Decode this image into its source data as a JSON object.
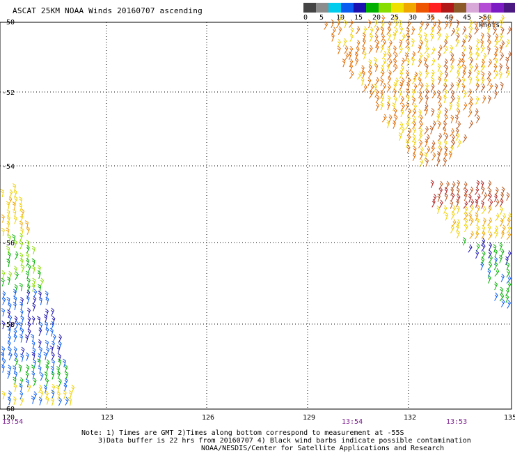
{
  "title": "ASCAT 25KM NOAA Winds 20160707 ascending",
  "colorbar": {
    "colors": [
      "#444444",
      "#8c8c8c",
      "#00ccee",
      "#0a5cf0",
      "#1b11b0",
      "#00b000",
      "#88dd00",
      "#f0e000",
      "#f0a800",
      "#ee5500",
      "#ff2020",
      "#b01818",
      "#8b5a28",
      "#d7a8d8",
      "#b44cd6",
      "#7c1ac4",
      "#4a1880"
    ],
    "labels": [
      "0",
      "5",
      "10",
      "15",
      "20",
      "25",
      "30",
      "35",
      "40",
      "45",
      ">50 knots"
    ]
  },
  "map": {
    "lat_labels": [
      "-50",
      "-52",
      "-54",
      "-56",
      "-58",
      "-60"
    ],
    "lon_labels": [
      "120",
      "123",
      "126",
      "129",
      "132",
      "135"
    ],
    "time_labels": [
      "13:54",
      "13:54",
      "13:53"
    ],
    "grid": "dotted"
  },
  "notes": {
    "line1": "Note: 1) Times are GMT 2)Times along bottom correspond to measurement at -55S",
    "line2": "3)Data buffer is 22 hrs from 20160707 4) Black wind barbs indicate possible contamination",
    "line3": "NOAA/NESDIS/Center for Satellite Applications and Research"
  },
  "swaths": [
    {
      "name": "northeast-swath-yellow",
      "color": "#f0d000"
    },
    {
      "name": "northeast-swath-orange",
      "color": "#e06a00"
    },
    {
      "name": "southeast-swath-green",
      "color": "#00b000"
    },
    {
      "name": "southwest-swath-blue",
      "color": "#0a5cf0"
    }
  ]
}
